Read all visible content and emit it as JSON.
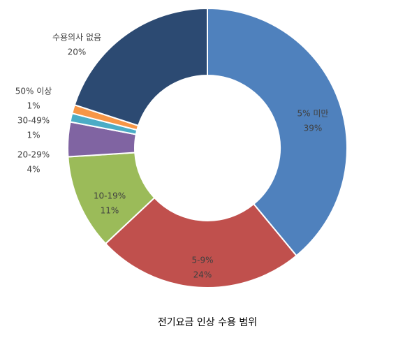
{
  "chart_data": {
    "type": "donut",
    "title": "전기요금 인상 수용 범위",
    "categories": [
      "5% 미만",
      "5-9%",
      "10-19%",
      "20-29%",
      "30-49%",
      "50% 이상",
      "수용의사 없음"
    ],
    "values": [
      39,
      24,
      11,
      4,
      1,
      1,
      20
    ],
    "value_labels": [
      "39%",
      "24%",
      "11%",
      "4%",
      "1%",
      "1%",
      "20%"
    ],
    "colors": [
      "#4f81bd",
      "#c0504d",
      "#9bbb59",
      "#8064a2",
      "#4bacc6",
      "#f79646",
      "#2c4a72"
    ]
  }
}
